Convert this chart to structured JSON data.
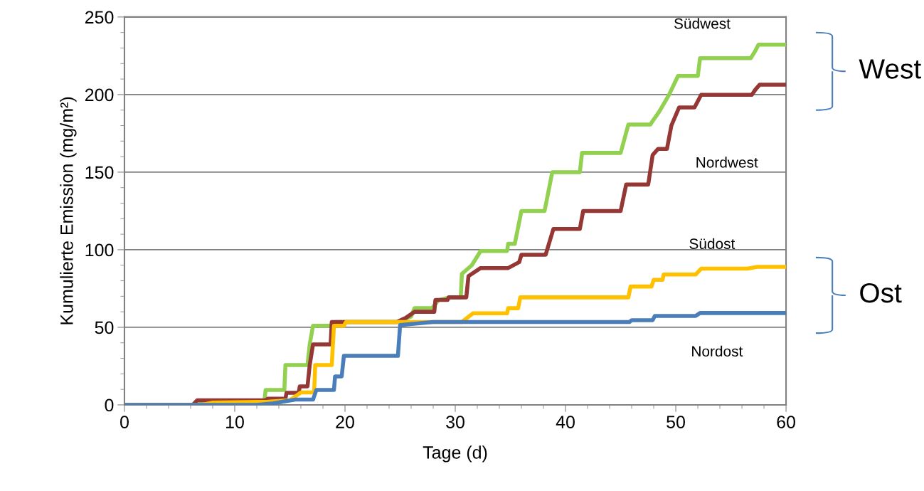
{
  "chart_data": {
    "type": "line",
    "xlabel": "Tage (d)",
    "ylabel": "Kumulierte Emission (mg/m²)",
    "xlim": [
      0,
      60
    ],
    "xticks": [
      0,
      10,
      20,
      30,
      40,
      50,
      60
    ],
    "ylim": [
      0,
      250
    ],
    "yticks": [
      0,
      50,
      100,
      150,
      200,
      250
    ],
    "grid": "y",
    "legend": false,
    "marker": "none",
    "line_style": "solid",
    "annotations": [
      "West",
      "Ost"
    ],
    "series": [
      {
        "name": "Südwest",
        "color": "#92d050",
        "x": [
          0,
          6.3,
          6.6,
          12.7,
          12.8,
          14.5,
          14.6,
          16.6,
          16.8,
          17.1,
          18.6,
          19.2,
          24.8,
          26.0,
          26.3,
          27.9,
          28.5,
          29.5,
          30.5,
          30.6,
          31.5,
          32.3,
          34.7,
          34.8,
          35.4,
          36.0,
          38.1,
          38.8,
          41.3,
          41.5,
          45.0,
          45.7,
          47.7,
          48.0,
          48.5,
          49.4,
          50.2,
          52.0,
          52.2,
          56.8,
          57.2,
          57.5,
          60
        ],
        "values": [
          0,
          0,
          2.5,
          2.5,
          9.6,
          9.6,
          25.7,
          25.7,
          39,
          51,
          51,
          53.4,
          53.4,
          57,
          62.4,
          62.4,
          67.6,
          69.3,
          69.3,
          84.4,
          90,
          99.2,
          99.2,
          103.8,
          103.8,
          125,
          125,
          150,
          150,
          162.4,
          162.4,
          180.7,
          180.7,
          184,
          189,
          200,
          212,
          212,
          223.5,
          223.5,
          228,
          232.2,
          232.2
        ]
      },
      {
        "name": "Nordwest",
        "color": "#953735",
        "x": [
          0,
          6.2,
          6.6,
          12.8,
          13.0,
          14.6,
          14.7,
          15.8,
          15.9,
          16.6,
          16.8,
          17.1,
          18.7,
          18.8,
          24.7,
          25.5,
          26.3,
          28.1,
          28.2,
          29.3,
          29.4,
          31.0,
          31.2,
          32.3,
          34.8,
          35.8,
          36.0,
          38.2,
          38.9,
          41.3,
          41.6,
          45.0,
          45.5,
          47.5,
          47.9,
          48.4,
          49.2,
          49.6,
          50.3,
          51.7,
          52.3,
          56.9,
          57.2,
          57.6,
          60
        ],
        "values": [
          0,
          0,
          3,
          3,
          4,
          4,
          7.8,
          7.8,
          11.9,
          11.9,
          25.7,
          39,
          39,
          53.4,
          53.4,
          56,
          60,
          60,
          67.6,
          67.6,
          69.3,
          69.3,
          83,
          88.2,
          88.2,
          92,
          96.8,
          96.8,
          113.4,
          113.4,
          125,
          125,
          142,
          142,
          161,
          165,
          165,
          180,
          191.7,
          191.7,
          199.8,
          199.8,
          203,
          206.4,
          206.4
        ]
      },
      {
        "name": "Südost",
        "color": "#ffc000",
        "x": [
          0,
          7.0,
          8.0,
          13.0,
          15.0,
          16.0,
          17.2,
          17.3,
          18.8,
          19.0,
          19.9,
          20.1,
          30.6,
          31.6,
          34.7,
          34.8,
          35.7,
          35.9,
          45.7,
          45.9,
          47.8,
          48.0,
          48.8,
          48.9,
          51.8,
          52.3,
          56.5,
          57.4,
          60
        ],
        "values": [
          0,
          0,
          1.5,
          2,
          3,
          8,
          8,
          25.7,
          25.7,
          51,
          51,
          53.4,
          53.4,
          59,
          59,
          62.3,
          62.3,
          69.3,
          69.3,
          76.3,
          76.3,
          80.6,
          80.6,
          84,
          84,
          87.8,
          87.8,
          89,
          89
        ]
      },
      {
        "name": "Nordost",
        "color": "#4a7ebb",
        "x": [
          0,
          12.0,
          13.5,
          15.5,
          17.1,
          17.4,
          19.0,
          19.1,
          19.7,
          19.9,
          24.8,
          25.0,
          28.0,
          45.8,
          46.0,
          47.9,
          48.1,
          51.8,
          52.2,
          60
        ],
        "values": [
          0,
          0,
          1,
          3.4,
          3.4,
          9.6,
          9.6,
          18.3,
          18.3,
          31.6,
          31.6,
          51.5,
          53.4,
          53.4,
          54.6,
          54.6,
          57.3,
          57.3,
          59.2,
          59.2
        ]
      }
    ]
  }
}
